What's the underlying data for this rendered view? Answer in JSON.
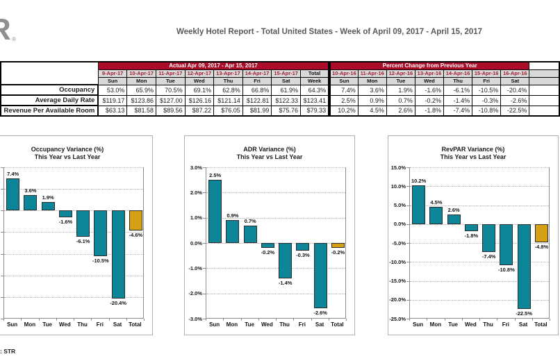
{
  "header": {
    "title": "Weekly Hotel Report - Total United States - Week of April 09, 2017 - April 15, 2017",
    "logo_text": "R",
    "logo_reg": "®"
  },
  "footer": {
    "source_note": ": STR"
  },
  "colors": {
    "brand_red": "#a90b28",
    "date_red": "#9e1b2e",
    "header_gray": "#d9d9d9",
    "bar_teal": "#0d8599",
    "bar_total_gold": "#d6a014",
    "title_gray": "#595959"
  },
  "table": {
    "sections": [
      {
        "label": "Actual Apr 09, 2017 - Apr 15, 2017",
        "dates": [
          "9-Apr-17",
          "10-Apr-17",
          "11-Apr-17",
          "12-Apr-17",
          "13-Apr-17",
          "14-Apr-17",
          "15-Apr-17",
          "Total"
        ],
        "days": [
          "Sun",
          "Mon",
          "Tue",
          "Wed",
          "Thu",
          "Fri",
          "Sat",
          "Week"
        ]
      },
      {
        "label": "Percent Change from Previous Year",
        "dates": [
          "10-Apr-16",
          "11-Apr-16",
          "12-Apr-16",
          "13-Apr-16",
          "14-Apr-16",
          "15-Apr-16",
          "16-Apr-16",
          ""
        ],
        "days": [
          "Sun",
          "Mon",
          "Tue",
          "Wed",
          "Thu",
          "Fri",
          "Sat",
          ""
        ]
      }
    ],
    "rows": [
      {
        "label": "Occupancy",
        "actual": [
          "53.0%",
          "65.9%",
          "70.5%",
          "69.1%",
          "62.8%",
          "66.8%",
          "61.9%",
          "64.3%"
        ],
        "pct": [
          "7.4%",
          "3.6%",
          "1.9%",
          "-1.6%",
          "-6.1%",
          "-10.5%",
          "-20.4%",
          ""
        ]
      },
      {
        "label": "Average Daily Rate",
        "actual": [
          "$119.17",
          "$123.86",
          "$127.00",
          "$126.16",
          "$121.14",
          "$122.81",
          "$122.33",
          "$123.41"
        ],
        "pct": [
          "2.5%",
          "0.9%",
          "0.7%",
          "-0.2%",
          "-1.4%",
          "-0.3%",
          "-2.6%",
          ""
        ]
      },
      {
        "label": "Revenue Per Available Room",
        "actual": [
          "$63.13",
          "$81.58",
          "$89.56",
          "$87.22",
          "$76.05",
          "$81.99",
          "$75.76",
          "$79.33"
        ],
        "pct": [
          "10.2%",
          "4.5%",
          "2.6%",
          "-1.8%",
          "-7.4%",
          "-10.8%",
          "-22.5%",
          ""
        ]
      }
    ]
  },
  "chart_data": [
    {
      "type": "bar",
      "title": "Occupancy Variance (%)",
      "subtitle": "This Year vs Last Year",
      "categories": [
        "Sun",
        "Mon",
        "Tue",
        "Wed",
        "Thu",
        "Fri",
        "Sat",
        "Total"
      ],
      "values": [
        7.4,
        3.6,
        1.9,
        -1.6,
        -6.1,
        -10.5,
        -20.4,
        -4.6
      ],
      "labels": [
        "7.4%",
        "3.6%",
        "1.9%",
        "-1.6%",
        "-6.1%",
        "-10.5%",
        "-20.4%",
        "-4.6%"
      ],
      "ylim": [
        -25,
        10
      ],
      "ystep": 5,
      "yticks": [],
      "grid": true,
      "legend": "none"
    },
    {
      "type": "bar",
      "title": "ADR Variance (%)",
      "subtitle": "This Year vs Last Year",
      "categories": [
        "Sun",
        "Mon",
        "Tue",
        "Wed",
        "Thu",
        "Fri",
        "Sat",
        "Total"
      ],
      "values": [
        2.5,
        0.9,
        0.7,
        -0.2,
        -1.4,
        -0.3,
        -2.6,
        -0.2
      ],
      "labels": [
        "2.5%",
        "0.9%",
        "0.7%",
        "-0.2%",
        "-1.4%",
        "-0.3%",
        "-2.6%",
        "-0.2%"
      ],
      "ylim": [
        -3,
        3
      ],
      "ystep": 1,
      "yticks": [
        "3.0%",
        "2.0%",
        "1.0%",
        "0.0%",
        "-1.0%",
        "-2.0%",
        "-3.0%"
      ],
      "grid": true,
      "legend": "none"
    },
    {
      "type": "bar",
      "title": "RevPAR Variance (%)",
      "subtitle": "This Year vs Last Year",
      "categories": [
        "Sun",
        "Mon",
        "Tue",
        "Wed",
        "Thu",
        "Fri",
        "Sat",
        "Total"
      ],
      "values": [
        10.2,
        4.5,
        2.6,
        -1.8,
        -7.4,
        -10.8,
        -22.5,
        -4.8
      ],
      "labels": [
        "10.2%",
        "4.5%",
        "2.6%",
        "-1.8%",
        "-7.4%",
        "-10.8%",
        "-22.5%",
        "-4.8%"
      ],
      "ylim": [
        -25,
        15
      ],
      "ystep": 5,
      "yticks": [
        "15.0%",
        "10.0%",
        "5.0%",
        "0.0%",
        "-5.0%",
        "-10.0%",
        "-15.0%",
        "-20.0%",
        "-25.0%"
      ],
      "grid": true,
      "legend": "none"
    }
  ]
}
